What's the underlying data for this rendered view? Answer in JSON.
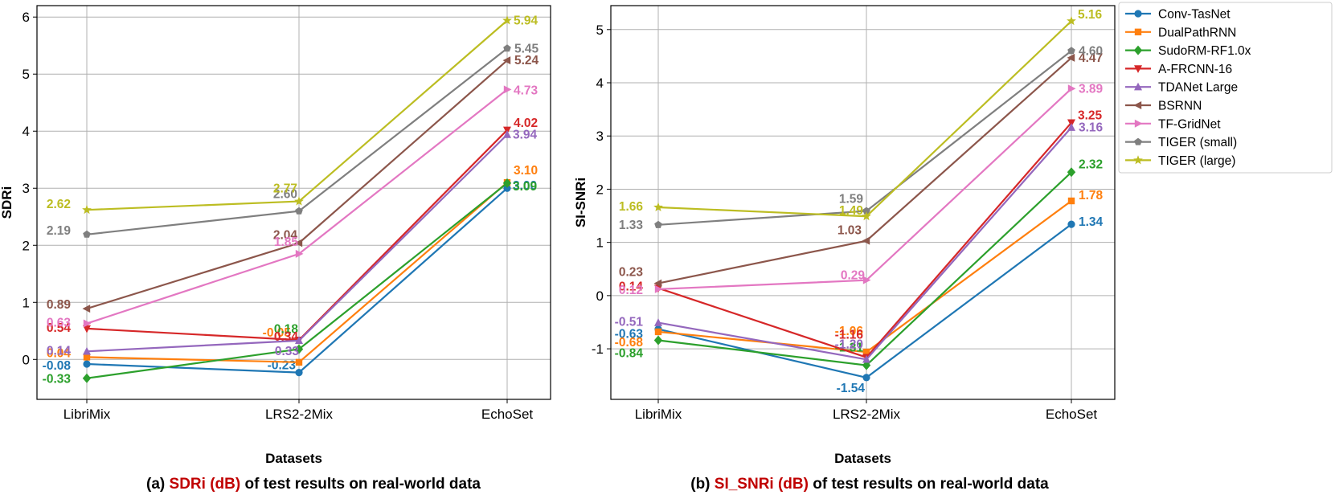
{
  "categories": [
    "LibriMix",
    "LRS2-2Mix",
    "EchoSet"
  ],
  "legend": [
    {
      "name": "Conv-TasNet",
      "color": "#1f77b4",
      "marker": "circle"
    },
    {
      "name": "DualPathRNN",
      "color": "#ff7f0e",
      "marker": "square"
    },
    {
      "name": "SudoRM-RF1.0x",
      "color": "#2ca02c",
      "marker": "diamond"
    },
    {
      "name": "A-FRCNN-16",
      "color": "#d62728",
      "marker": "triangle-down"
    },
    {
      "name": "TDANet Large",
      "color": "#9467bd",
      "marker": "triangle-up"
    },
    {
      "name": "BSRNN",
      "color": "#8c564b",
      "marker": "triangle-left"
    },
    {
      "name": "TF-GridNet",
      "color": "#e377c2",
      "marker": "triangle-right"
    },
    {
      "name": "TIGER (small)",
      "color": "#7f7f7f",
      "marker": "pentagon"
    },
    {
      "name": "TIGER (large)",
      "color": "#bcbd22",
      "marker": "star"
    }
  ],
  "captions": {
    "a": {
      "prefix": "(a) ",
      "highlight": "SDRi (dB)",
      "suffix": " of test results on real-world data"
    },
    "b": {
      "prefix": "(b) ",
      "highlight": "SI_SNRi (dB)",
      "suffix": " of test results on real-world data"
    }
  },
  "chart_data": [
    {
      "type": "line",
      "xlabel": "Datasets",
      "ylabel": "SDRi",
      "ylim": [
        -0.7,
        6.2
      ],
      "yticks": [
        0,
        1,
        2,
        3,
        4,
        5,
        6
      ],
      "grid": true,
      "categories": [
        "LibriMix",
        "LRS2-2Mix",
        "EchoSet"
      ],
      "series": [
        {
          "name": "Conv-TasNet",
          "values": [
            -0.08,
            -0.23,
            3.0
          ],
          "labels": [
            "-0.08",
            "-0.23",
            "3.00"
          ]
        },
        {
          "name": "DualPathRNN",
          "values": [
            0.04,
            -0.05,
            3.1
          ],
          "labels": [
            "0.04",
            "-0.05",
            "3.10"
          ]
        },
        {
          "name": "SudoRM-RF1.0x",
          "values": [
            -0.33,
            0.18,
            3.09
          ],
          "labels": [
            "-0.33",
            "0.18",
            "3.09"
          ]
        },
        {
          "name": "A-FRCNN-16",
          "values": [
            0.54,
            0.34,
            4.02
          ],
          "labels": [
            "0.54",
            "0.34",
            "4.02"
          ]
        },
        {
          "name": "TDANet Large",
          "values": [
            0.14,
            0.33,
            3.94
          ],
          "labels": [
            "0.14",
            "0.33",
            "3.94"
          ]
        },
        {
          "name": "BSRNN",
          "values": [
            0.89,
            2.04,
            5.24
          ],
          "labels": [
            "0.89",
            "2.04",
            "5.24"
          ]
        },
        {
          "name": "TF-GridNet",
          "values": [
            0.63,
            1.85,
            4.73
          ],
          "labels": [
            "0.63",
            "1.85",
            "4.73"
          ]
        },
        {
          "name": "TIGER (small)",
          "values": [
            2.19,
            2.6,
            5.45
          ],
          "labels": [
            "2.19",
            "2.60",
            "5.45"
          ]
        },
        {
          "name": "TIGER (large)",
          "values": [
            2.62,
            2.77,
            5.94
          ],
          "labels": [
            "2.62",
            "2.77",
            "5.94"
          ]
        }
      ]
    },
    {
      "type": "line",
      "xlabel": "Datasets",
      "ylabel": "SI-SNRi",
      "ylim": [
        -1.95,
        5.45
      ],
      "yticks": [
        -1,
        0,
        1,
        2,
        3,
        4,
        5
      ],
      "grid": true,
      "legend_position": "outside right",
      "categories": [
        "LibriMix",
        "LRS2-2Mix",
        "EchoSet"
      ],
      "series": [
        {
          "name": "Conv-TasNet",
          "values": [
            -0.63,
            -1.54,
            1.34
          ],
          "labels": [
            "-0.63",
            "-1.54",
            "1.34"
          ]
        },
        {
          "name": "DualPathRNN",
          "values": [
            -0.68,
            -1.06,
            1.78
          ],
          "labels": [
            "-0.68",
            "-1.06",
            "1.78"
          ]
        },
        {
          "name": "SudoRM-RF1.0x",
          "values": [
            -0.84,
            -1.31,
            2.32
          ],
          "labels": [
            "-0.84",
            "-1.31",
            "2.32"
          ]
        },
        {
          "name": "A-FRCNN-16",
          "values": [
            0.14,
            -1.16,
            3.25
          ],
          "labels": [
            "0.14",
            "-1.16",
            "3.25"
          ]
        },
        {
          "name": "TDANet Large",
          "values": [
            -0.51,
            -1.2,
            3.16
          ],
          "labels": [
            "-0.51",
            "-1.20",
            "3.16"
          ]
        },
        {
          "name": "BSRNN",
          "values": [
            0.23,
            1.03,
            4.47
          ],
          "labels": [
            "0.23",
            "1.03",
            "4.47"
          ]
        },
        {
          "name": "TF-GridNet",
          "values": [
            0.12,
            0.29,
            3.89
          ],
          "labels": [
            "0.12",
            "0.29",
            "3.89"
          ]
        },
        {
          "name": "TIGER (small)",
          "values": [
            1.33,
            1.59,
            4.6
          ],
          "labels": [
            "1.33",
            "1.59",
            "4.60"
          ]
        },
        {
          "name": "TIGER (large)",
          "values": [
            1.66,
            1.49,
            5.16
          ],
          "labels": [
            "1.66",
            "1.49",
            "5.16"
          ]
        }
      ]
    }
  ]
}
